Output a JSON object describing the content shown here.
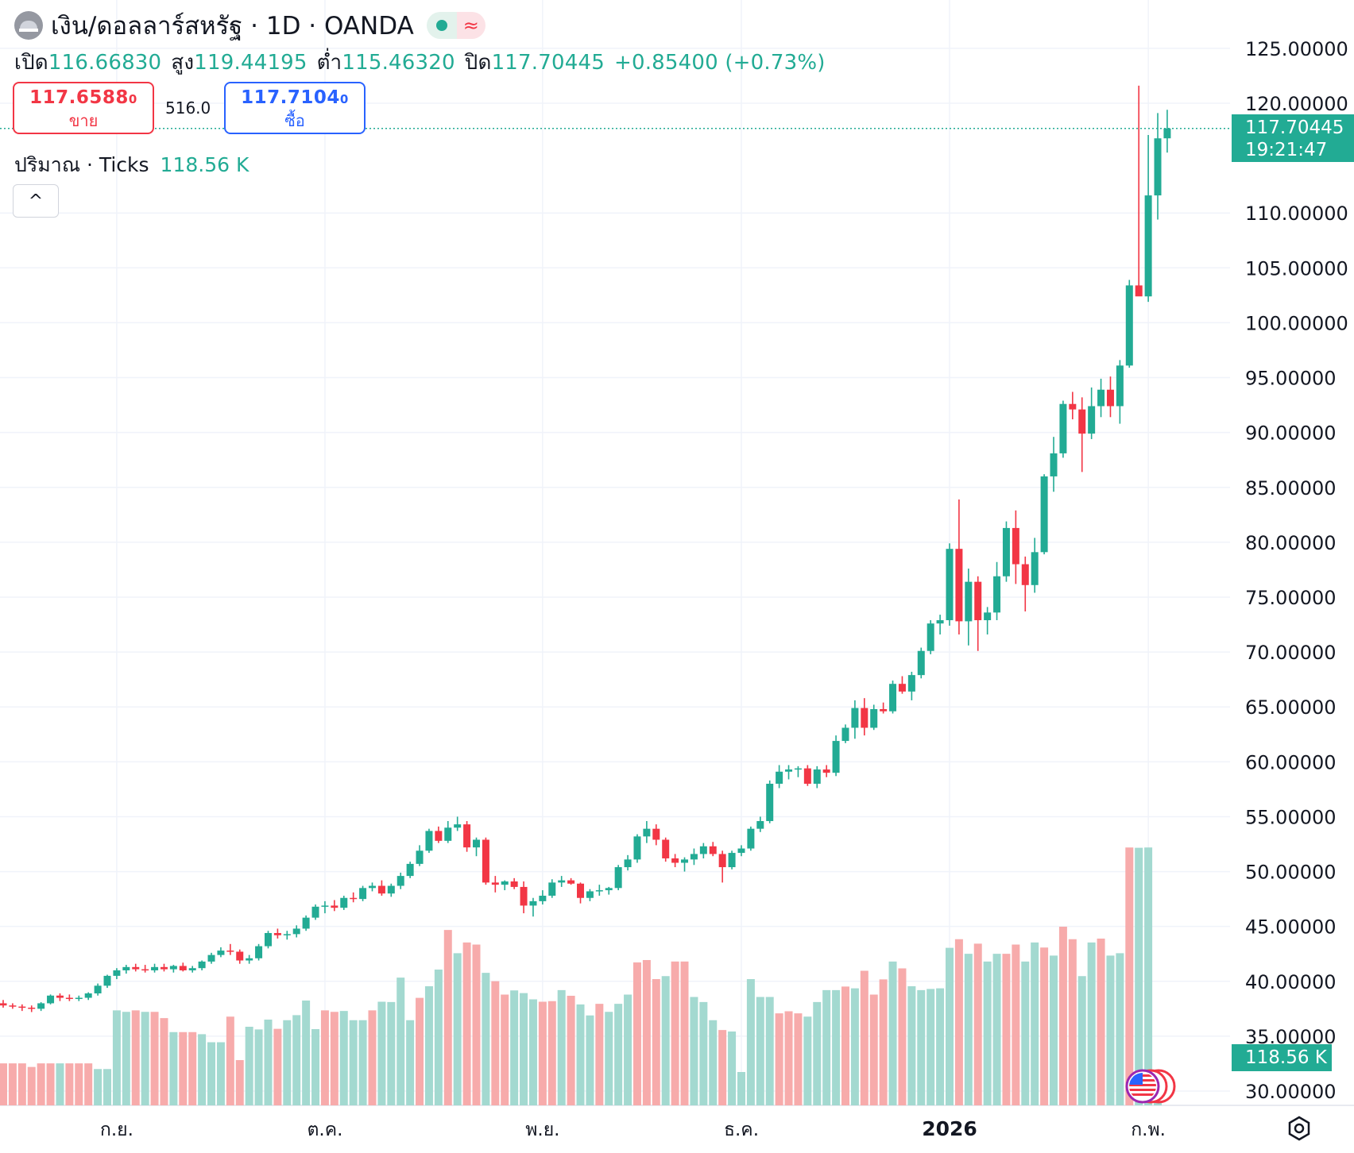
{
  "header": {
    "title": "เงิน/ดอลลาร์สหรัฐ · 1D · OANDA",
    "market_status_icon": "dot-icon",
    "wave_icon": "≈"
  },
  "ohlc": {
    "open_label": "เปิด",
    "open": "116.66830",
    "high_label": "สูง",
    "high": "119.44195",
    "low_label": "ต่ำ",
    "low": "115.46320",
    "close_label": "ปิด",
    "close": "117.70445",
    "change": "+0.85400 (+0.73%)"
  },
  "trade": {
    "sell_price_main": "117.6588",
    "sell_price_small": "0",
    "sell_label": "ขาย",
    "spread": "516.0",
    "buy_price_main": "117.7104",
    "buy_price_small": "0",
    "buy_label": "ซื้อ"
  },
  "volume_legend": {
    "label": "ปริมาณ · Ticks",
    "value": "118.56 K"
  },
  "collapse_icon": "^",
  "price_tag": {
    "price": "117.70445",
    "countdown": "19:21:47"
  },
  "volume_tag": "118.56 K",
  "colors": {
    "up": "#22ab94",
    "down": "#f23645",
    "vol_up": "#a3d9d0",
    "vol_down": "#f7abab",
    "grid": "#f0f3fa"
  },
  "chart_data": {
    "type": "candlestick",
    "title": "เงิน/ดอลลาร์สหรัฐ · 1D · OANDA",
    "y_ticks": [
      "125.00000",
      "120.00000",
      "110.00000",
      "105.00000",
      "100.00000",
      "95.00000",
      "90.00000",
      "85.00000",
      "80.00000",
      "75.00000",
      "70.00000",
      "65.00000",
      "60.00000",
      "55.00000",
      "50.00000",
      "45.00000",
      "40.00000",
      "35.00000",
      "30.00000"
    ],
    "y_tick_values": [
      125,
      120,
      110,
      105,
      100,
      95,
      90,
      85,
      80,
      75,
      70,
      65,
      60,
      55,
      50,
      45,
      40,
      35,
      30
    ],
    "ylim": [
      28.7,
      130
    ],
    "x_labels": [
      "ก.ย.",
      "ต.ค.",
      "พ.ย.",
      "ธ.ค.",
      "2026",
      "ก.พ."
    ],
    "x_label_index": [
      12,
      34,
      57,
      78,
      100,
      121
    ],
    "last_price": 117.70445,
    "candles": [
      [
        38.0,
        38.3,
        37.6,
        37.8
      ],
      [
        37.8,
        38.0,
        37.5,
        37.7
      ],
      [
        37.7,
        37.9,
        37.3,
        37.6
      ],
      [
        37.6,
        37.8,
        37.2,
        37.5
      ],
      [
        37.5,
        38.1,
        37.3,
        38.0
      ],
      [
        38.0,
        38.8,
        37.9,
        38.7
      ],
      [
        38.7,
        38.9,
        38.2,
        38.5
      ],
      [
        38.5,
        38.8,
        38.2,
        38.4
      ],
      [
        38.4,
        38.7,
        38.2,
        38.5
      ],
      [
        38.5,
        39.0,
        38.3,
        38.9
      ],
      [
        38.9,
        39.8,
        38.7,
        39.6
      ],
      [
        39.6,
        40.6,
        39.4,
        40.5
      ],
      [
        40.5,
        41.2,
        40.2,
        41.0
      ],
      [
        41.0,
        41.5,
        40.7,
        41.3
      ],
      [
        41.3,
        41.6,
        40.9,
        41.1
      ],
      [
        41.1,
        41.5,
        40.8,
        41.0
      ],
      [
        41.0,
        41.6,
        40.8,
        41.3
      ],
      [
        41.3,
        41.6,
        40.9,
        41.1
      ],
      [
        41.1,
        41.5,
        40.8,
        41.4
      ],
      [
        41.4,
        41.7,
        40.9,
        41.0
      ],
      [
        41.0,
        41.4,
        40.8,
        41.2
      ],
      [
        41.2,
        41.9,
        41.0,
        41.8
      ],
      [
        41.8,
        42.6,
        41.6,
        42.4
      ],
      [
        42.4,
        43.1,
        42.2,
        42.8
      ],
      [
        42.8,
        43.4,
        42.4,
        42.7
      ],
      [
        42.7,
        42.9,
        41.6,
        41.9
      ],
      [
        41.9,
        42.4,
        41.6,
        42.1
      ],
      [
        42.1,
        43.4,
        41.9,
        43.2
      ],
      [
        43.2,
        44.6,
        43.0,
        44.4
      ],
      [
        44.4,
        44.8,
        43.9,
        44.2
      ],
      [
        44.2,
        44.6,
        43.8,
        44.3
      ],
      [
        44.3,
        45.1,
        44.0,
        44.8
      ],
      [
        44.8,
        46.0,
        44.6,
        45.8
      ],
      [
        45.8,
        47.0,
        45.6,
        46.8
      ],
      [
        46.8,
        47.3,
        46.2,
        46.9
      ],
      [
        46.9,
        47.4,
        46.4,
        46.7
      ],
      [
        46.7,
        47.8,
        46.5,
        47.6
      ],
      [
        47.6,
        48.1,
        47.2,
        47.5
      ],
      [
        47.5,
        48.7,
        47.3,
        48.5
      ],
      [
        48.5,
        49.0,
        48.2,
        48.7
      ],
      [
        48.7,
        49.2,
        47.8,
        48.0
      ],
      [
        48.0,
        48.9,
        47.7,
        48.7
      ],
      [
        48.7,
        49.9,
        48.4,
        49.6
      ],
      [
        49.6,
        50.9,
        49.4,
        50.7
      ],
      [
        50.7,
        52.4,
        50.5,
        51.9
      ],
      [
        51.9,
        53.9,
        51.7,
        53.7
      ],
      [
        53.7,
        54.1,
        52.6,
        52.8
      ],
      [
        52.8,
        54.6,
        52.6,
        54.0
      ],
      [
        54.0,
        55.0,
        53.7,
        54.3
      ],
      [
        54.3,
        54.6,
        51.8,
        52.2
      ],
      [
        52.2,
        53.1,
        51.4,
        52.9
      ],
      [
        52.9,
        53.1,
        48.8,
        49.0
      ],
      [
        49.0,
        49.6,
        48.1,
        48.8
      ],
      [
        48.8,
        49.2,
        48.3,
        49.1
      ],
      [
        49.1,
        49.4,
        48.4,
        48.6
      ],
      [
        48.6,
        49.1,
        46.2,
        46.9
      ],
      [
        46.9,
        47.6,
        45.9,
        47.3
      ],
      [
        47.3,
        48.3,
        47.0,
        47.8
      ],
      [
        47.8,
        49.3,
        47.6,
        49.0
      ],
      [
        49.0,
        49.6,
        48.6,
        49.2
      ],
      [
        49.2,
        49.4,
        48.8,
        48.9
      ],
      [
        48.9,
        49.0,
        47.1,
        47.6
      ],
      [
        47.6,
        48.4,
        47.3,
        48.2
      ],
      [
        48.2,
        48.8,
        47.8,
        48.3
      ],
      [
        48.3,
        48.6,
        47.9,
        48.5
      ],
      [
        48.5,
        50.6,
        48.3,
        50.4
      ],
      [
        50.4,
        51.5,
        50.1,
        51.1
      ],
      [
        51.1,
        53.4,
        50.8,
        53.2
      ],
      [
        53.2,
        54.6,
        52.6,
        53.9
      ],
      [
        53.9,
        54.3,
        52.4,
        52.9
      ],
      [
        52.9,
        53.1,
        50.9,
        51.2
      ],
      [
        51.2,
        51.6,
        50.4,
        50.8
      ],
      [
        50.8,
        51.3,
        50.0,
        51.1
      ],
      [
        51.1,
        52.1,
        50.6,
        51.6
      ],
      [
        51.6,
        52.6,
        51.2,
        52.3
      ],
      [
        52.3,
        52.7,
        51.4,
        51.6
      ],
      [
        51.6,
        51.9,
        49.0,
        50.4
      ],
      [
        50.4,
        51.9,
        50.2,
        51.7
      ],
      [
        51.7,
        52.4,
        51.4,
        52.1
      ],
      [
        52.1,
        54.1,
        51.9,
        53.9
      ],
      [
        53.9,
        55.0,
        53.6,
        54.6
      ],
      [
        54.6,
        58.3,
        54.4,
        58.0
      ],
      [
        58.0,
        59.7,
        57.6,
        59.1
      ],
      [
        59.1,
        59.7,
        58.4,
        59.3
      ],
      [
        59.3,
        59.6,
        58.6,
        59.4
      ],
      [
        59.4,
        59.7,
        57.8,
        58.0
      ],
      [
        58.0,
        59.6,
        57.6,
        59.3
      ],
      [
        59.3,
        59.7,
        58.6,
        59.0
      ],
      [
        59.0,
        62.4,
        58.7,
        61.9
      ],
      [
        61.9,
        63.4,
        61.7,
        63.1
      ],
      [
        63.1,
        65.6,
        62.1,
        64.9
      ],
      [
        64.9,
        65.8,
        62.4,
        63.1
      ],
      [
        63.1,
        65.2,
        62.9,
        64.8
      ],
      [
        64.8,
        65.4,
        64.4,
        64.6
      ],
      [
        64.6,
        67.4,
        64.4,
        67.1
      ],
      [
        67.1,
        67.8,
        66.2,
        66.4
      ],
      [
        66.4,
        68.2,
        65.6,
        67.9
      ],
      [
        67.9,
        70.4,
        67.6,
        70.1
      ],
      [
        70.1,
        72.9,
        69.8,
        72.6
      ],
      [
        72.6,
        73.4,
        71.6,
        72.9
      ],
      [
        72.9,
        79.9,
        72.4,
        79.4
      ],
      [
        79.4,
        83.9,
        71.6,
        72.8
      ],
      [
        72.8,
        77.6,
        70.6,
        76.4
      ],
      [
        76.4,
        76.9,
        70.1,
        72.9
      ],
      [
        72.9,
        74.1,
        71.6,
        73.6
      ],
      [
        73.6,
        78.2,
        72.9,
        76.9
      ],
      [
        76.9,
        81.9,
        76.4,
        81.3
      ],
      [
        81.3,
        82.9,
        76.2,
        78.0
      ],
      [
        78.0,
        78.7,
        73.7,
        76.1
      ],
      [
        76.1,
        80.4,
        75.4,
        79.1
      ],
      [
        79.1,
        86.2,
        78.9,
        86.0
      ],
      [
        86.0,
        89.6,
        84.6,
        88.1
      ],
      [
        88.1,
        92.9,
        87.7,
        92.6
      ],
      [
        92.6,
        93.7,
        91.2,
        92.1
      ],
      [
        92.1,
        93.2,
        86.4,
        89.9
      ],
      [
        89.9,
        94.1,
        89.4,
        92.4
      ],
      [
        92.4,
        94.9,
        91.4,
        93.9
      ],
      [
        93.9,
        95.1,
        91.4,
        92.4
      ],
      [
        92.4,
        96.6,
        90.8,
        96.1
      ],
      [
        96.1,
        103.9,
        95.9,
        103.4
      ],
      [
        103.4,
        121.6,
        102.6,
        102.4
      ],
      [
        102.4,
        117.1,
        101.9,
        111.6
      ],
      [
        111.6,
        119.1,
        109.4,
        116.8
      ],
      [
        116.8,
        119.4,
        115.5,
        117.7
      ]
    ],
    "volumes": [
      [
        14.1,
        0
      ],
      [
        14.1,
        0
      ],
      [
        14.1,
        0
      ],
      [
        12.9,
        0
      ],
      [
        14.1,
        0
      ],
      [
        14.1,
        0
      ],
      [
        14.1,
        1
      ],
      [
        14.1,
        0
      ],
      [
        14.1,
        0
      ],
      [
        14.1,
        0
      ],
      [
        12.2,
        1
      ],
      [
        12.2,
        1
      ],
      [
        31.9,
        1
      ],
      [
        31.4,
        1
      ],
      [
        31.9,
        0
      ],
      [
        31.4,
        1
      ],
      [
        31.4,
        0
      ],
      [
        29.3,
        0
      ],
      [
        24.6,
        1
      ],
      [
        24.6,
        0
      ],
      [
        24.6,
        0
      ],
      [
        23.9,
        1
      ],
      [
        21.2,
        1
      ],
      [
        21.2,
        1
      ],
      [
        29.8,
        0
      ],
      [
        15.2,
        0
      ],
      [
        26.4,
        1
      ],
      [
        25.5,
        1
      ],
      [
        28.8,
        1
      ],
      [
        25.7,
        0
      ],
      [
        28.6,
        1
      ],
      [
        30.3,
        1
      ],
      [
        35.2,
        1
      ],
      [
        25.6,
        1
      ],
      [
        31.9,
        0
      ],
      [
        31.4,
        0
      ],
      [
        31.7,
        1
      ],
      [
        28.6,
        1
      ],
      [
        28.6,
        1
      ],
      [
        31.9,
        0
      ],
      [
        34.8,
        1
      ],
      [
        34.7,
        1
      ],
      [
        42.9,
        1
      ],
      [
        28.6,
        1
      ],
      [
        36.1,
        0
      ],
      [
        40.0,
        1
      ],
      [
        45.6,
        1
      ],
      [
        58.9,
        0
      ],
      [
        51.1,
        1
      ],
      [
        54.7,
        0
      ],
      [
        54.0,
        0
      ],
      [
        44.5,
        1
      ],
      [
        41.7,
        0
      ],
      [
        37.2,
        0
      ],
      [
        38.6,
        1
      ],
      [
        37.7,
        1
      ],
      [
        35.6,
        1
      ],
      [
        34.8,
        0
      ],
      [
        35.0,
        0
      ],
      [
        38.7,
        1
      ],
      [
        36.8,
        0
      ],
      [
        33.9,
        1
      ],
      [
        30.2,
        1
      ],
      [
        34.1,
        0
      ],
      [
        31.4,
        1
      ],
      [
        34.1,
        1
      ],
      [
        37.2,
        1
      ],
      [
        48.0,
        0
      ],
      [
        48.8,
        0
      ],
      [
        42.4,
        0
      ],
      [
        43.4,
        1
      ],
      [
        48.3,
        0
      ],
      [
        48.3,
        0
      ],
      [
        36.4,
        1
      ],
      [
        34.7,
        1
      ],
      [
        28.6,
        1
      ],
      [
        25.3,
        0
      ],
      [
        24.8,
        1
      ],
      [
        11.2,
        1
      ],
      [
        42.4,
        1
      ],
      [
        36.4,
        1
      ],
      [
        36.4,
        1
      ],
      [
        30.9,
        0
      ],
      [
        31.6,
        0
      ],
      [
        30.9,
        0
      ],
      [
        29.8,
        1
      ],
      [
        34.7,
        1
      ],
      [
        38.7,
        1
      ],
      [
        38.7,
        1
      ],
      [
        39.9,
        0
      ],
      [
        39.3,
        1
      ],
      [
        45.2,
        0
      ],
      [
        37.2,
        0
      ],
      [
        42.3,
        0
      ],
      [
        48.3,
        1
      ],
      [
        46.0,
        0
      ],
      [
        40.0,
        1
      ],
      [
        38.7,
        1
      ],
      [
        39.1,
        1
      ],
      [
        39.3,
        1
      ],
      [
        52.9,
        1
      ],
      [
        55.8,
        0
      ],
      [
        50.9,
        1
      ],
      [
        54.3,
        0
      ],
      [
        48.3,
        1
      ],
      [
        50.9,
        1
      ],
      [
        50.9,
        0
      ],
      [
        54.0,
        0
      ],
      [
        48.3,
        1
      ],
      [
        54.7,
        1
      ],
      [
        53.0,
        0
      ],
      [
        50.3,
        1
      ],
      [
        60.0,
        0
      ],
      [
        55.8,
        0
      ],
      [
        43.4,
        1
      ],
      [
        54.7,
        1
      ],
      [
        56.0,
        0
      ],
      [
        50.3,
        1
      ],
      [
        51.1,
        1
      ],
      [
        86.6,
        0
      ],
      [
        86.5,
        1
      ],
      [
        86.6,
        1
      ],
      [
        5.0,
        1
      ]
    ]
  }
}
